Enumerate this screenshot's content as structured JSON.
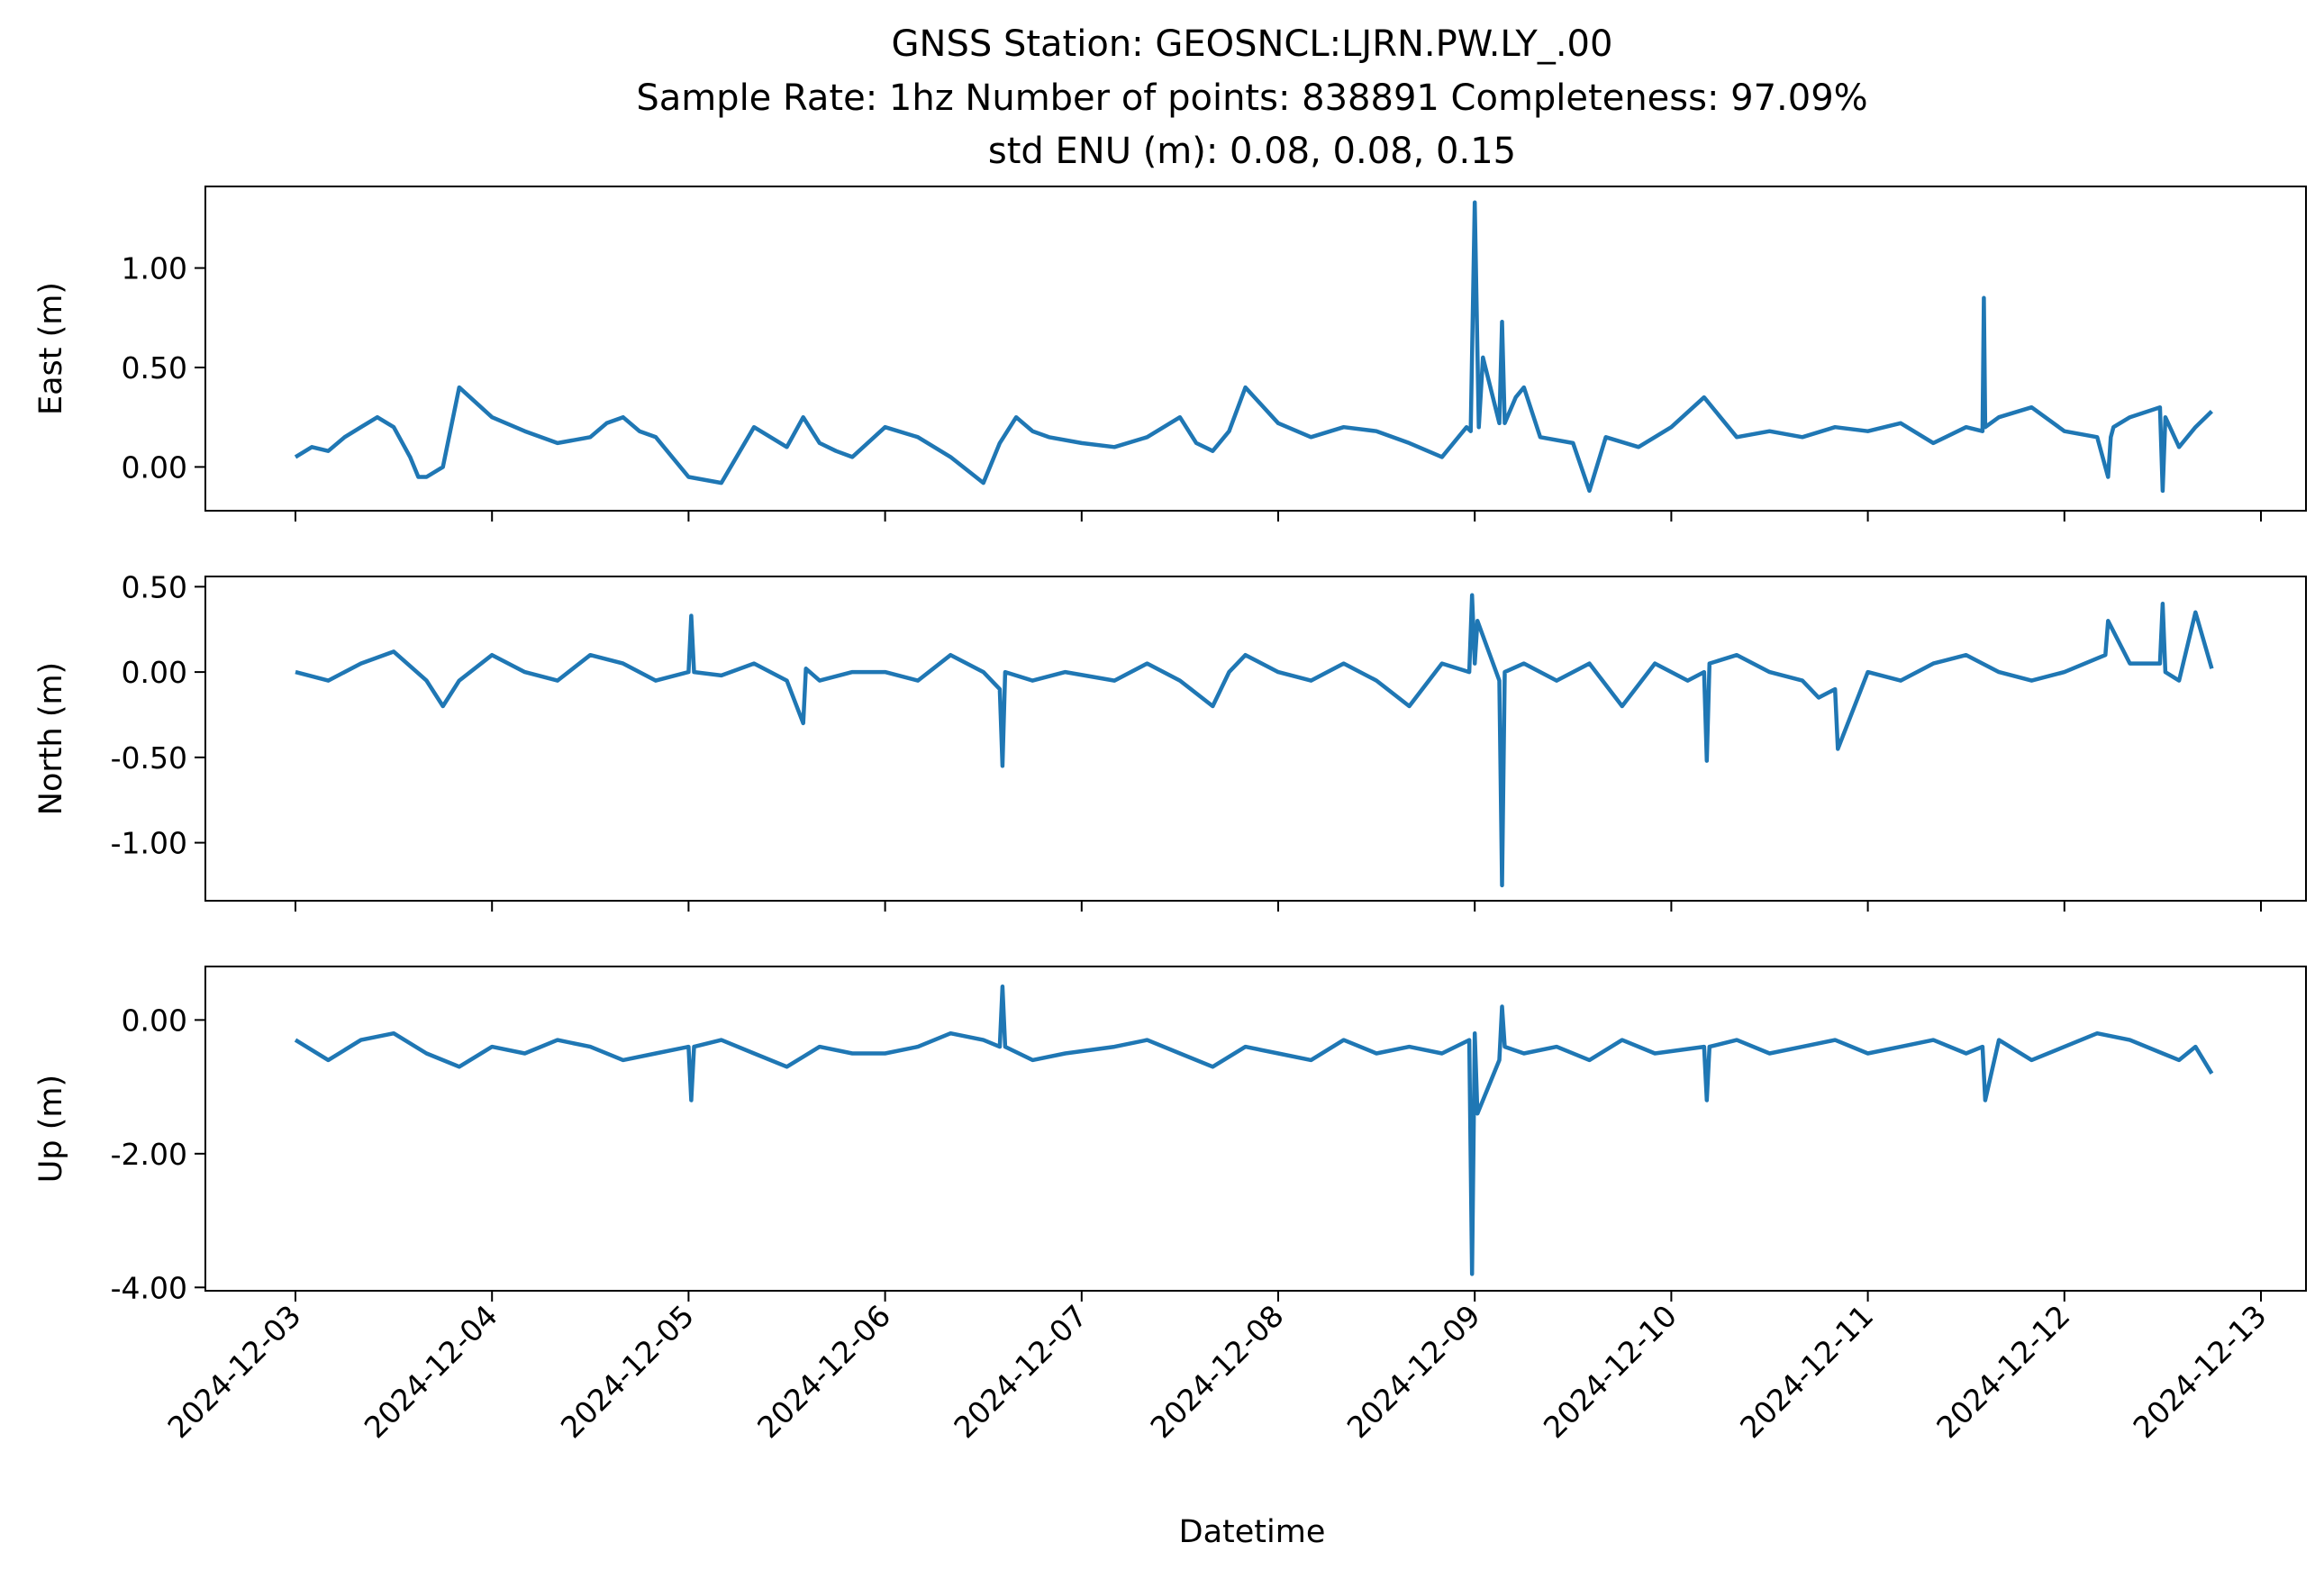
{
  "title_lines": [
    "GNSS Station: GEOSNCL:LJRN.PW.LY_.00",
    "Sample Rate: 1hz   Number of points: 838891    Completeness:  97.09%",
    "std ENU (m):  0.08, 0.08, 0.15"
  ],
  "colors": {
    "series": "#1f77b4",
    "axes": "#000000",
    "background": "#ffffff"
  },
  "chart_data": {
    "type": "line",
    "xlabel": "Datetime",
    "x_ticks": [
      "2024-12-03",
      "2024-12-04",
      "2024-12-05",
      "2024-12-06",
      "2024-12-07",
      "2024-12-08",
      "2024-12-09",
      "2024-12-10",
      "2024-12-11",
      "2024-12-12",
      "2024-12-13"
    ],
    "xlim": [
      "2024-12-02T13:00",
      "2024-12-13T05:30"
    ],
    "panels": [
      {
        "ylabel": "East (m)",
        "ylim": [
          -0.22,
          1.41
        ],
        "y_ticks": [
          1.0,
          0.5,
          0.0
        ],
        "y_tick_labels": [
          "1.00",
          "0.50",
          "0.00"
        ],
        "series": {
          "x": [
            "2024-12-03T00:00",
            "2024-12-03T02:00",
            "2024-12-03T04:00",
            "2024-12-03T06:00",
            "2024-12-03T08:00",
            "2024-12-03T10:00",
            "2024-12-03T12:00",
            "2024-12-03T14:00",
            "2024-12-03T15:00",
            "2024-12-03T16:00",
            "2024-12-03T18:00",
            "2024-12-03T20:00",
            "2024-12-04T00:00",
            "2024-12-04T04:00",
            "2024-12-04T08:00",
            "2024-12-04T12:00",
            "2024-12-04T14:00",
            "2024-12-04T16:00",
            "2024-12-04T18:00",
            "2024-12-04T20:00",
            "2024-12-05T00:00",
            "2024-12-05T04:00",
            "2024-12-05T08:00",
            "2024-12-05T12:00",
            "2024-12-05T14:00",
            "2024-12-05T16:00",
            "2024-12-05T18:00",
            "2024-12-05T20:00",
            "2024-12-06T00:00",
            "2024-12-06T04:00",
            "2024-12-06T08:00",
            "2024-12-06T12:00",
            "2024-12-06T14:00",
            "2024-12-06T16:00",
            "2024-12-06T18:00",
            "2024-12-06T20:00",
            "2024-12-07T00:00",
            "2024-12-07T04:00",
            "2024-12-07T08:00",
            "2024-12-07T12:00",
            "2024-12-07T14:00",
            "2024-12-07T16:00",
            "2024-12-07T18:00",
            "2024-12-07T20:00",
            "2024-12-08T00:00",
            "2024-12-08T04:00",
            "2024-12-08T08:00",
            "2024-12-08T12:00",
            "2024-12-08T16:00",
            "2024-12-08T20:00",
            "2024-12-08T23:00",
            "2024-12-08T23:30",
            "2024-12-09T00:00",
            "2024-12-09T00:30",
            "2024-12-09T01:00",
            "2024-12-09T03:00",
            "2024-12-09T03:20",
            "2024-12-09T03:40",
            "2024-12-09T05:00",
            "2024-12-09T06:00",
            "2024-12-09T08:00",
            "2024-12-09T12:00",
            "2024-12-09T14:00",
            "2024-12-09T16:00",
            "2024-12-09T20:00",
            "2024-12-10T00:00",
            "2024-12-10T04:00",
            "2024-12-10T08:00",
            "2024-12-10T12:00",
            "2024-12-10T16:00",
            "2024-12-10T20:00",
            "2024-12-11T00:00",
            "2024-12-11T04:00",
            "2024-12-11T08:00",
            "2024-12-11T12:00",
            "2024-12-11T14:00",
            "2024-12-11T14:10",
            "2024-12-11T14:20",
            "2024-12-11T16:00",
            "2024-12-11T20:00",
            "2024-12-12T00:00",
            "2024-12-12T04:00",
            "2024-12-12T05:20",
            "2024-12-12T05:40",
            "2024-12-12T06:00",
            "2024-12-12T08:00",
            "2024-12-12T11:40",
            "2024-12-12T12:00",
            "2024-12-12T12:20",
            "2024-12-12T14:00",
            "2024-12-12T16:00",
            "2024-12-12T18:00"
          ],
          "y": [
            0.05,
            0.1,
            0.08,
            0.15,
            0.2,
            0.25,
            0.2,
            0.05,
            -0.05,
            -0.05,
            0.0,
            0.4,
            0.25,
            0.18,
            0.12,
            0.15,
            0.22,
            0.25,
            0.18,
            0.15,
            -0.05,
            -0.08,
            0.2,
            0.1,
            0.25,
            0.12,
            0.08,
            0.05,
            0.2,
            0.15,
            0.05,
            -0.08,
            0.12,
            0.25,
            0.18,
            0.15,
            0.12,
            0.1,
            0.15,
            0.25,
            0.12,
            0.08,
            0.18,
            0.4,
            0.22,
            0.15,
            0.2,
            0.18,
            0.12,
            0.05,
            0.2,
            0.18,
            1.33,
            0.2,
            0.55,
            0.22,
            0.73,
            0.22,
            0.35,
            0.4,
            0.15,
            0.12,
            -0.12,
            0.15,
            0.1,
            0.2,
            0.35,
            0.15,
            0.18,
            0.15,
            0.2,
            0.18,
            0.22,
            0.12,
            0.2,
            0.18,
            0.85,
            0.2,
            0.25,
            0.3,
            0.18,
            0.15,
            -0.05,
            0.15,
            0.2,
            0.25,
            0.3,
            -0.12,
            0.25,
            0.1,
            0.2,
            0.28
          ]
        }
      },
      {
        "ylabel": "North (m)",
        "ylim": [
          -1.34,
          0.56
        ],
        "y_ticks": [
          0.5,
          0.0,
          -0.5,
          -1.0
        ],
        "y_tick_labels": [
          "0.50",
          "0.00",
          "-0.50",
          "-1.00"
        ],
        "series": {
          "x": [
            "2024-12-03T00:00",
            "2024-12-03T04:00",
            "2024-12-03T08:00",
            "2024-12-03T12:00",
            "2024-12-03T16:00",
            "2024-12-03T18:00",
            "2024-12-03T20:00",
            "2024-12-04T00:00",
            "2024-12-04T04:00",
            "2024-12-04T08:00",
            "2024-12-04T12:00",
            "2024-12-04T16:00",
            "2024-12-04T20:00",
            "2024-12-05T00:00",
            "2024-12-05T00:20",
            "2024-12-05T00:40",
            "2024-12-05T04:00",
            "2024-12-05T08:00",
            "2024-12-05T12:00",
            "2024-12-05T14:00",
            "2024-12-05T14:20",
            "2024-12-05T16:00",
            "2024-12-05T20:00",
            "2024-12-06T00:00",
            "2024-12-06T04:00",
            "2024-12-06T08:00",
            "2024-12-06T12:00",
            "2024-12-06T14:00",
            "2024-12-06T14:20",
            "2024-12-06T14:40",
            "2024-12-06T18:00",
            "2024-12-06T22:00",
            "2024-12-07T04:00",
            "2024-12-07T08:00",
            "2024-12-07T12:00",
            "2024-12-07T16:00",
            "2024-12-07T18:00",
            "2024-12-07T20:00",
            "2024-12-08T00:00",
            "2024-12-08T04:00",
            "2024-12-08T08:00",
            "2024-12-08T12:00",
            "2024-12-08T16:00",
            "2024-12-08T20:00",
            "2024-12-08T23:20",
            "2024-12-08T23:40",
            "2024-12-09T00:00",
            "2024-12-09T00:20",
            "2024-12-09T03:00",
            "2024-12-09T03:20",
            "2024-12-09T03:40",
            "2024-12-09T06:00",
            "2024-12-09T10:00",
            "2024-12-09T14:00",
            "2024-12-09T18:00",
            "2024-12-09T22:00",
            "2024-12-10T02:00",
            "2024-12-10T04:00",
            "2024-12-10T04:20",
            "2024-12-10T04:40",
            "2024-12-10T08:00",
            "2024-12-10T12:00",
            "2024-12-10T16:00",
            "2024-12-10T18:00",
            "2024-12-10T20:00",
            "2024-12-10T20:20",
            "2024-12-11T00:00",
            "2024-12-11T04:00",
            "2024-12-11T08:00",
            "2024-12-11T12:00",
            "2024-12-11T16:00",
            "2024-12-11T20:00",
            "2024-12-12T00:00",
            "2024-12-12T04:00",
            "2024-12-12T05:00",
            "2024-12-12T05:20",
            "2024-12-12T08:00",
            "2024-12-12T11:40",
            "2024-12-12T12:00",
            "2024-12-12T12:20",
            "2024-12-12T14:00",
            "2024-12-12T16:00",
            "2024-12-12T18:00"
          ],
          "y": [
            0.0,
            -0.05,
            0.05,
            0.12,
            -0.05,
            -0.2,
            -0.05,
            0.1,
            0.0,
            -0.05,
            0.1,
            0.05,
            -0.05,
            0.0,
            0.33,
            0.0,
            -0.02,
            0.05,
            -0.05,
            -0.3,
            0.02,
            -0.05,
            0.0,
            0.0,
            -0.05,
            0.1,
            0.0,
            -0.1,
            -0.55,
            0.0,
            -0.05,
            0.0,
            -0.05,
            0.05,
            -0.05,
            -0.2,
            0.0,
            0.1,
            0.0,
            -0.05,
            0.05,
            -0.05,
            -0.2,
            0.05,
            0.0,
            0.45,
            0.05,
            0.3,
            -0.05,
            -1.25,
            0.0,
            0.05,
            -0.05,
            0.05,
            -0.2,
            0.05,
            -0.05,
            0.0,
            -0.52,
            0.05,
            0.1,
            0.0,
            -0.05,
            -0.15,
            -0.1,
            -0.45,
            0.0,
            -0.05,
            0.05,
            0.1,
            0.0,
            -0.05,
            0.0,
            0.08,
            0.1,
            0.3,
            0.05,
            0.05,
            0.4,
            0.0,
            -0.05,
            0.35,
            0.02
          ]
        }
      },
      {
        "ylabel": "Up (m)",
        "ylim": [
          -4.05,
          0.8
        ],
        "y_ticks": [
          0.0,
          -2.0,
          -4.0
        ],
        "y_tick_labels": [
          "0.00",
          "-2.00",
          "-4.00"
        ],
        "series": {
          "x": [
            "2024-12-03T00:00",
            "2024-12-03T04:00",
            "2024-12-03T08:00",
            "2024-12-03T12:00",
            "2024-12-03T16:00",
            "2024-12-03T20:00",
            "2024-12-04T00:00",
            "2024-12-04T04:00",
            "2024-12-04T08:00",
            "2024-12-04T12:00",
            "2024-12-04T16:00",
            "2024-12-04T20:00",
            "2024-12-05T00:00",
            "2024-12-05T00:20",
            "2024-12-05T00:40",
            "2024-12-05T04:00",
            "2024-12-05T08:00",
            "2024-12-05T12:00",
            "2024-12-05T16:00",
            "2024-12-05T20:00",
            "2024-12-06T00:00",
            "2024-12-06T04:00",
            "2024-12-06T08:00",
            "2024-12-06T12:00",
            "2024-12-06T14:00",
            "2024-12-06T14:20",
            "2024-12-06T14:40",
            "2024-12-06T18:00",
            "2024-12-06T22:00",
            "2024-12-07T04:00",
            "2024-12-07T08:00",
            "2024-12-07T12:00",
            "2024-12-07T16:00",
            "2024-12-07T20:00",
            "2024-12-08T00:00",
            "2024-12-08T04:00",
            "2024-12-08T08:00",
            "2024-12-08T12:00",
            "2024-12-08T16:00",
            "2024-12-08T20:00",
            "2024-12-08T23:20",
            "2024-12-08T23:40",
            "2024-12-09T00:00",
            "2024-12-09T00:20",
            "2024-12-09T03:00",
            "2024-12-09T03:20",
            "2024-12-09T03:40",
            "2024-12-09T06:00",
            "2024-12-09T10:00",
            "2024-12-09T14:00",
            "2024-12-09T18:00",
            "2024-12-09T22:00",
            "2024-12-10T04:00",
            "2024-12-10T04:20",
            "2024-12-10T04:40",
            "2024-12-10T08:00",
            "2024-12-10T12:00",
            "2024-12-10T16:00",
            "2024-12-10T20:00",
            "2024-12-11T00:00",
            "2024-12-11T04:00",
            "2024-12-11T08:00",
            "2024-12-11T12:00",
            "2024-12-11T14:00",
            "2024-12-11T14:20",
            "2024-12-11T16:00",
            "2024-12-11T20:00",
            "2024-12-12T00:00",
            "2024-12-12T04:00",
            "2024-12-12T08:00",
            "2024-12-12T12:00",
            "2024-12-12T14:00",
            "2024-12-12T16:00",
            "2024-12-12T18:00"
          ],
          "y": [
            -0.3,
            -0.6,
            -0.3,
            -0.2,
            -0.5,
            -0.7,
            -0.4,
            -0.5,
            -0.3,
            -0.4,
            -0.6,
            -0.5,
            -0.4,
            -1.2,
            -0.4,
            -0.3,
            -0.5,
            -0.7,
            -0.4,
            -0.5,
            -0.5,
            -0.4,
            -0.2,
            -0.3,
            -0.4,
            0.5,
            -0.4,
            -0.6,
            -0.5,
            -0.4,
            -0.3,
            -0.5,
            -0.7,
            -0.4,
            -0.5,
            -0.6,
            -0.3,
            -0.5,
            -0.4,
            -0.5,
            -0.3,
            -3.8,
            -0.2,
            -1.4,
            -0.6,
            0.2,
            -0.4,
            -0.5,
            -0.4,
            -0.6,
            -0.3,
            -0.5,
            -0.4,
            -1.2,
            -0.4,
            -0.3,
            -0.5,
            -0.4,
            -0.3,
            -0.5,
            -0.4,
            -0.3,
            -0.5,
            -0.4,
            -1.2,
            -0.3,
            -0.6,
            -0.4,
            -0.2,
            -0.3,
            -0.5,
            -0.6,
            -0.4,
            -0.8
          ]
        }
      }
    ]
  }
}
